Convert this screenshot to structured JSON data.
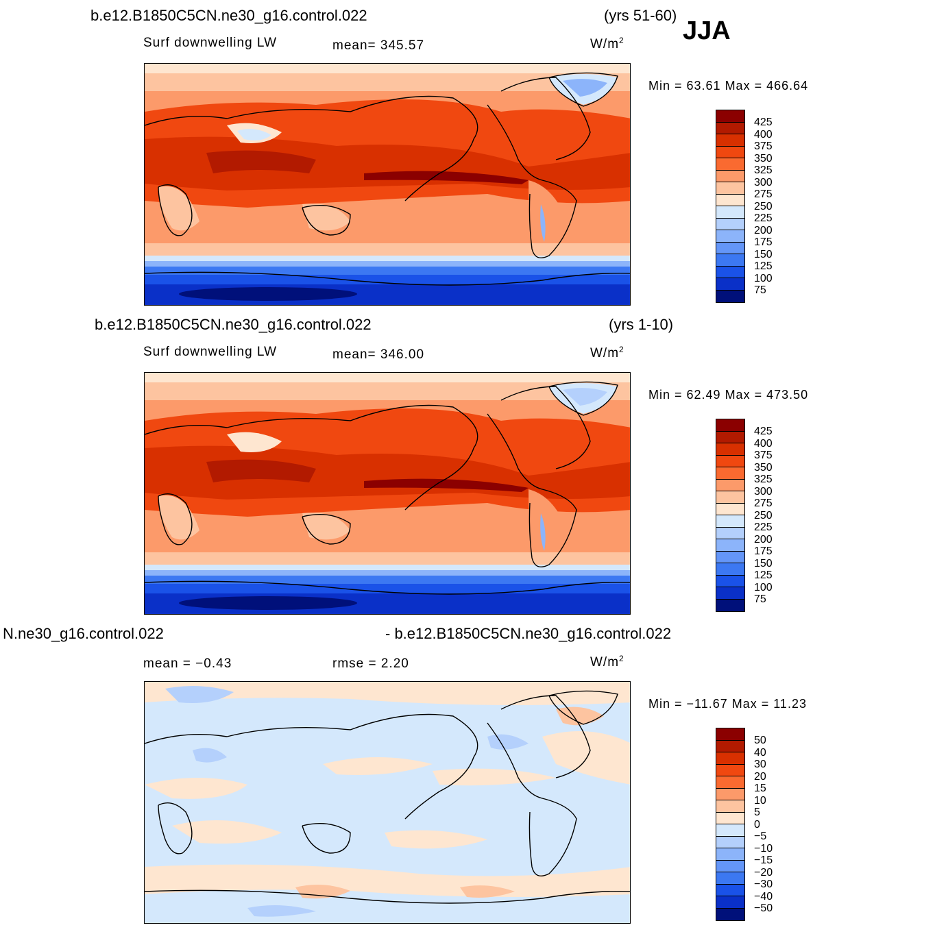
{
  "season": "JJA",
  "units_base": "W/m",
  "units_exp": "2",
  "panels": [
    {
      "case": "b.e12.B1850C5CN.ne30_g16.control.022",
      "years": "(yrs 51-60)",
      "variable": "Surf  downwelling  LW",
      "stat1": "mean=  345.57",
      "stat2": "",
      "minmax": "Min  =    63.61  Max  =  466.64"
    },
    {
      "case": "b.e12.B1850C5CN.ne30_g16.control.022",
      "years": "(yrs 1-10)",
      "variable": "Surf  downwelling  LW",
      "stat1": "mean=  346.00",
      "stat2": "",
      "minmax": "Min  =    62.49  Max  =  473.50"
    },
    {
      "case_left": "N.ne30_g16.control.022",
      "case_right": "- b.e12.B1850C5CN.ne30_g16.control.022",
      "variable": "mean  =    −0.43",
      "stat1": "rmse  =     2.20",
      "minmax": "Min  =  −11.67  Max  =    11.23"
    }
  ],
  "colorbar_abs": {
    "labels": [
      "425",
      "400",
      "375",
      "350",
      "325",
      "300",
      "275",
      "250",
      "225",
      "200",
      "175",
      "150",
      "125",
      "100",
      "75"
    ],
    "colors": [
      "#8b0000",
      "#b21a00",
      "#d83000",
      "#f04810",
      "#fa6a30",
      "#fc9a6a",
      "#fdc4a0",
      "#fee6d0",
      "#d4e8fc",
      "#b4d0fc",
      "#8cb4fa",
      "#6496f8",
      "#3c78f2",
      "#1a52e8",
      "#0a30c8",
      "#00107a"
    ]
  },
  "colorbar_diff": {
    "labels": [
      "50",
      "40",
      "30",
      "20",
      "15",
      "10",
      "5",
      "0",
      "−5",
      "−10",
      "−15",
      "−20",
      "−30",
      "−40",
      "−50"
    ],
    "colors": [
      "#8b0000",
      "#b21a00",
      "#d83000",
      "#f04810",
      "#fa6a30",
      "#fc9a6a",
      "#fdc4a0",
      "#fee6d0",
      "#d4e8fc",
      "#b4d0fc",
      "#8cb4fa",
      "#6496f8",
      "#3c78f2",
      "#1a52e8",
      "#0a30c8",
      "#00107a"
    ]
  }
}
